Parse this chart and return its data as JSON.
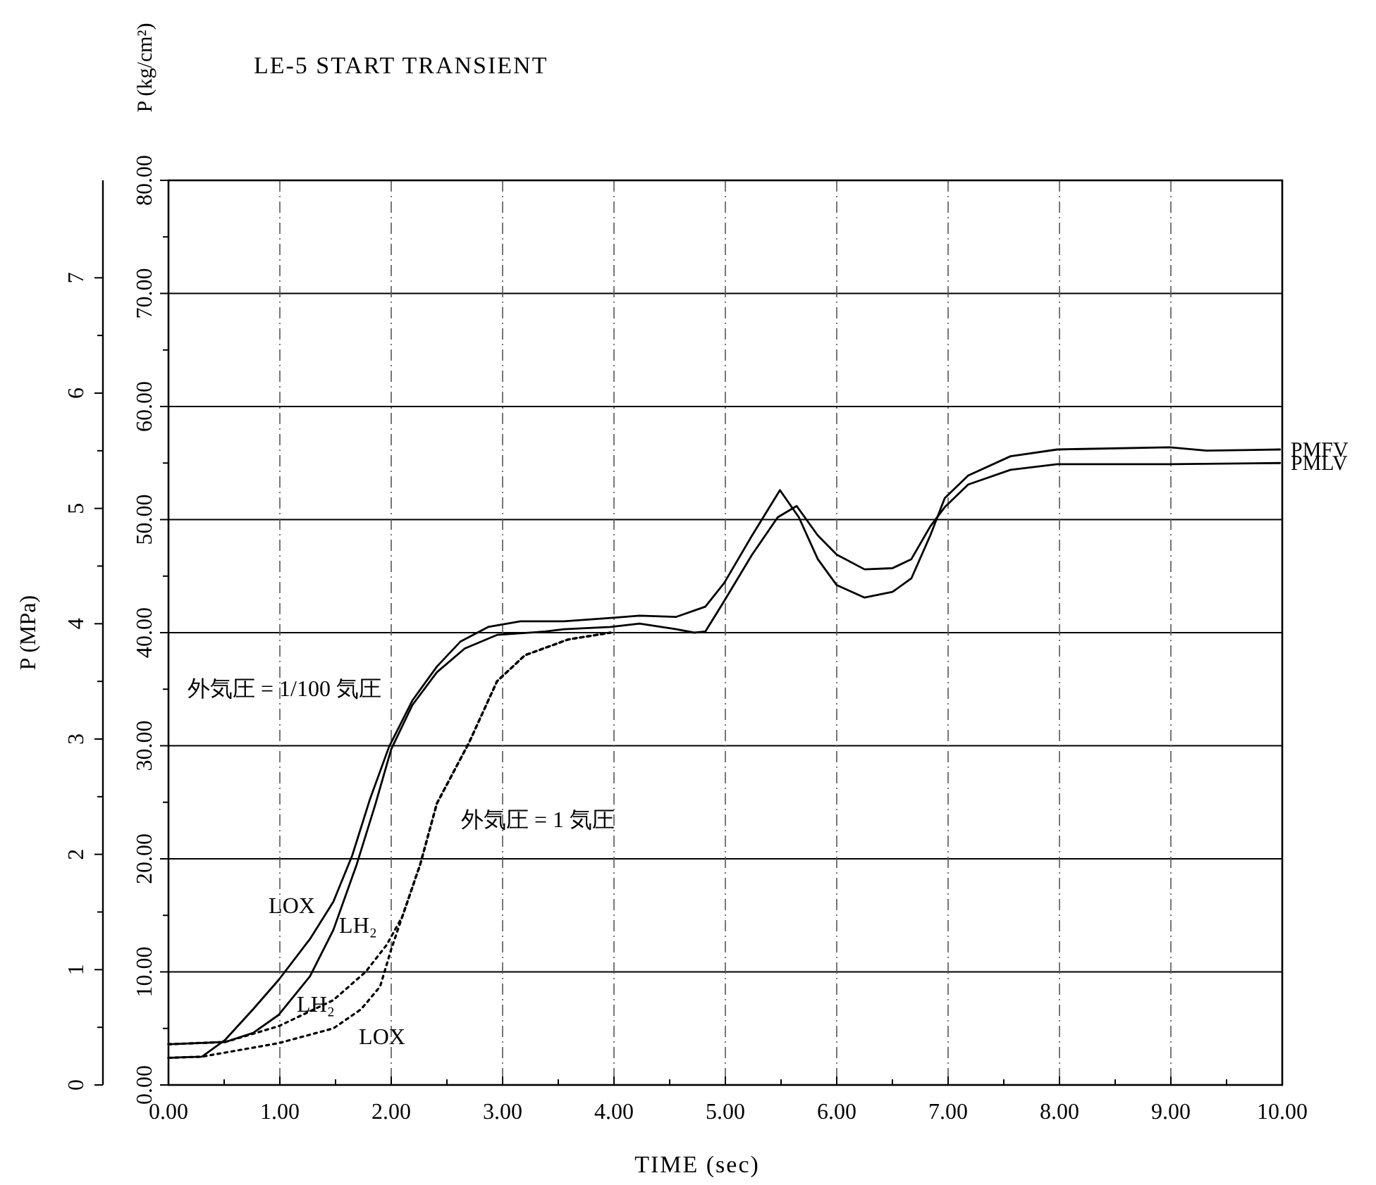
{
  "chart_data": {
    "type": "line",
    "title": "LE-5 START TRANSIENT",
    "xlabel": "TIME (sec)",
    "ylabel": "P (kg/cm²)",
    "y2label": "P (MPa)",
    "xlim": [
      0,
      10
    ],
    "xticks": [
      {
        "value": 0,
        "label": "0.00"
      },
      {
        "value": 1,
        "label": "1.00"
      },
      {
        "value": 2,
        "label": "2.00"
      },
      {
        "value": 3,
        "label": "3.00"
      },
      {
        "value": 4,
        "label": "4.00"
      },
      {
        "value": 5,
        "label": "5.00"
      },
      {
        "value": 6,
        "label": "6.00"
      },
      {
        "value": 7,
        "label": "7.00"
      },
      {
        "value": 8,
        "label": "8.00"
      },
      {
        "value": 9,
        "label": "9.00"
      },
      {
        "value": 10,
        "label": "10.00"
      }
    ],
    "ylim": [
      0,
      80
    ],
    "yticks": [
      {
        "value": 0,
        "label": "0.00"
      },
      {
        "value": 10,
        "label": "10.00"
      },
      {
        "value": 20,
        "label": "20.00"
      },
      {
        "value": 30,
        "label": "30.00"
      },
      {
        "value": 40,
        "label": "40.00"
      },
      {
        "value": 50,
        "label": "50.00"
      },
      {
        "value": 60,
        "label": "60.00"
      },
      {
        "value": 70,
        "label": "70.00"
      },
      {
        "value": 80,
        "label": "80.00"
      }
    ],
    "y2lim": [
      0,
      7.845
    ],
    "y2ticks": [
      0,
      1,
      2,
      3,
      4,
      5,
      6,
      7
    ],
    "grid": true,
    "series": [
      {
        "name": "LOX",
        "color": "#000000",
        "line_style": "solid",
        "x": [
          0,
          0.3,
          0.51,
          0.76,
          0.99,
          1.27,
          1.48,
          1.65,
          1.81,
          1.98,
          2.19,
          2.41,
          2.62,
          2.87,
          3.16,
          3.55,
          3.97,
          4.23,
          4.56,
          4.82,
          4.99,
          5.24,
          5.49,
          5.66,
          5.83,
          6.0,
          6.25,
          6.5,
          6.67,
          6.84,
          6.97,
          7.18,
          7.56,
          7.98,
          8.99,
          9.32,
          9.98
        ],
        "values": [
          2.4,
          2.5,
          4.0,
          6.7,
          9.3,
          12.9,
          16.2,
          20.3,
          25.3,
          29.9,
          34.0,
          37.0,
          39.2,
          40.5,
          41.0,
          41.0,
          41.3,
          41.5,
          41.4,
          42.3,
          44.4,
          48.6,
          52.6,
          50.2,
          46.5,
          44.2,
          43.1,
          43.6,
          44.8,
          48.6,
          51.9,
          53.9,
          55.6,
          56.2,
          56.4,
          56.1,
          56.2
        ]
      },
      {
        "name": "LH₂",
        "color": "#000000",
        "line_style": "solid",
        "x": [
          0,
          0.51,
          0.76,
          0.99,
          1.27,
          1.48,
          1.69,
          1.86,
          2.0,
          2.19,
          2.41,
          2.66,
          2.95,
          3.38,
          3.55,
          3.97,
          4.23,
          4.56,
          4.72,
          4.82,
          4.99,
          5.24,
          5.47,
          5.64,
          5.83,
          6.0,
          6.25,
          6.5,
          6.67,
          6.84,
          6.97,
          7.18,
          7.56,
          7.98,
          8.99,
          9.98
        ],
        "values": [
          3.6,
          3.8,
          4.6,
          6.2,
          9.6,
          13.7,
          19.5,
          24.9,
          29.7,
          33.6,
          36.5,
          38.6,
          39.8,
          40.1,
          40.3,
          40.5,
          40.8,
          40.3,
          40.0,
          40.1,
          42.8,
          46.9,
          50.2,
          51.2,
          48.6,
          46.9,
          45.6,
          45.7,
          46.5,
          49.4,
          51.1,
          53.1,
          54.4,
          54.9,
          54.9,
          55.0
        ]
      },
      {
        "name": "LH₂",
        "color": "#000000",
        "line_style": "dotted",
        "x": [
          0,
          0.51,
          0.99,
          1.48,
          1.77,
          1.96,
          2.1,
          2.26,
          2.41,
          2.7,
          2.95,
          3.2,
          3.59,
          3.97
        ],
        "values": [
          3.6,
          3.8,
          5.2,
          7.5,
          10.0,
          12.4,
          14.9,
          19.5,
          24.9,
          30.3,
          35.7,
          38.0,
          39.4,
          40.0
        ]
      },
      {
        "name": "LOX",
        "color": "#000000",
        "line_style": "dotted",
        "x": [
          0,
          0.3,
          0.99,
          1.48,
          1.73,
          1.9,
          2.0,
          2.1,
          2.26,
          2.41,
          2.7,
          2.95,
          3.2,
          3.59,
          3.97
        ],
        "values": [
          2.4,
          2.5,
          3.7,
          5.0,
          6.7,
          8.7,
          12.0,
          14.9,
          19.5,
          24.9,
          30.3,
          35.7,
          38.0,
          39.4,
          40.0
        ]
      }
    ],
    "annotations": [
      "外気圧 = 1/100 気圧",
      "外気圧 = 1 気圧",
      {
        "text": "PMFV",
        "x": 10,
        "y": 56.2
      },
      {
        "text": "PMLV",
        "x": 10,
        "y": 55.0
      }
    ]
  }
}
